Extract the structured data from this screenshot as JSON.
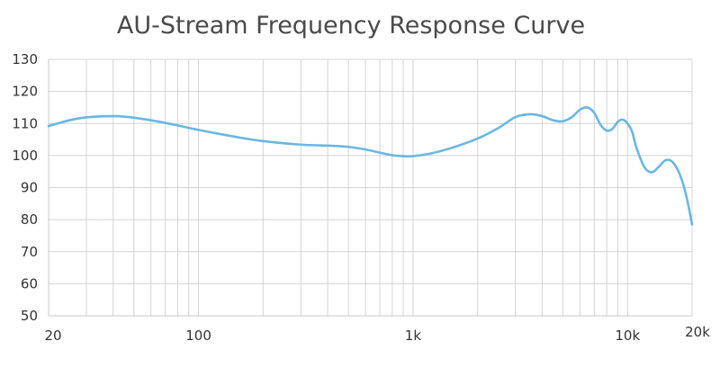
{
  "chart_data": {
    "type": "line",
    "title": "AU-Stream Frequency Response Curve",
    "xlabel": "",
    "ylabel": "",
    "x_scale": "log",
    "xlim": [
      20,
      20000
    ],
    "ylim": [
      50,
      130
    ],
    "y_ticks": [
      50,
      60,
      70,
      80,
      90,
      100,
      110,
      120,
      130
    ],
    "y_tick_labels": [
      "50",
      "60",
      "70",
      "80",
      "90",
      "100",
      "110",
      "120",
      "130"
    ],
    "x_tick_labels": [
      {
        "value": 20,
        "label": "20"
      },
      {
        "value": 100,
        "label": "100"
      },
      {
        "value": 1000,
        "label": "1k"
      },
      {
        "value": 10000,
        "label": "10k"
      },
      {
        "value": 20000,
        "label": "20k"
      }
    ],
    "x_gridlines": [
      20,
      30,
      40,
      50,
      60,
      70,
      80,
      90,
      100,
      200,
      300,
      400,
      500,
      600,
      700,
      800,
      900,
      1000,
      2000,
      3000,
      4000,
      5000,
      6000,
      7000,
      8000,
      9000,
      10000,
      20000
    ],
    "y_gridlines": [
      50,
      60,
      70,
      80,
      90,
      100,
      110,
      120,
      130
    ],
    "grid": true,
    "legend": false,
    "series": [
      {
        "name": "AU-Stream",
        "color": "#6ab7e3",
        "x": [
          20,
          25,
          30,
          40,
          50,
          70,
          100,
          150,
          200,
          300,
          400,
          500,
          600,
          700,
          800,
          900,
          1000,
          1200,
          1500,
          2000,
          2500,
          3000,
          3500,
          4000,
          4500,
          5000,
          5500,
          6000,
          6500,
          7000,
          7500,
          8000,
          8500,
          9000,
          9500,
          10000,
          10500,
          11000,
          12000,
          13000,
          14000,
          15000,
          16000,
          17000,
          18000,
          19000,
          20000
        ],
        "values": [
          109.2,
          111.0,
          111.9,
          112.3,
          111.8,
          110.2,
          108.0,
          105.8,
          104.5,
          103.4,
          103.1,
          102.7,
          101.9,
          100.9,
          100.1,
          99.8,
          99.8,
          100.6,
          102.3,
          105.3,
          108.6,
          112.0,
          112.9,
          112.3,
          111.0,
          110.7,
          112.0,
          114.3,
          115.0,
          113.3,
          109.5,
          107.8,
          108.3,
          110.5,
          111.2,
          110.0,
          107.5,
          102.5,
          96.3,
          94.8,
          96.5,
          98.5,
          98.3,
          96.0,
          92.0,
          86.0,
          78.5
        ]
      }
    ]
  },
  "style": {
    "grid_color": "#d4d4d4",
    "axis_color": "#c8c8c8",
    "line_color": "#6ab7e3",
    "text_color": "#333333",
    "title_color": "#4a4a4a"
  }
}
